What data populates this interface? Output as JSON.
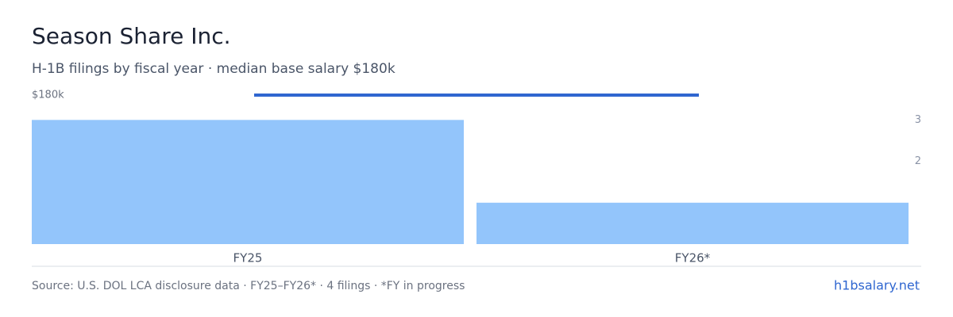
{
  "chart_data": {
    "type": "bar-line",
    "title": "Season Share Inc.",
    "subtitle": "H-1B filings by fiscal year · median base salary $180k",
    "categories": [
      "FY25",
      "FY26*"
    ],
    "series": [
      {
        "type": "bar",
        "axis": "y2",
        "color": "#93c5fb",
        "values": [
          3,
          1
        ]
      },
      {
        "type": "line",
        "axis": "y",
        "color": "#2f66d0",
        "values": [
          180000,
          180000
        ]
      }
    ],
    "ylim": [
      0,
      180000
    ],
    "yticks": [
      {
        "value": 180000,
        "label": "$180k"
      }
    ],
    "y2lim": [
      0,
      3.6
    ],
    "y2ticks": [
      2,
      3
    ],
    "source": "Source: U.S. DOL LCA disclosure data · FY25–FY26* · 4 filings · *FY in progress",
    "site": "h1bsalary.net"
  }
}
